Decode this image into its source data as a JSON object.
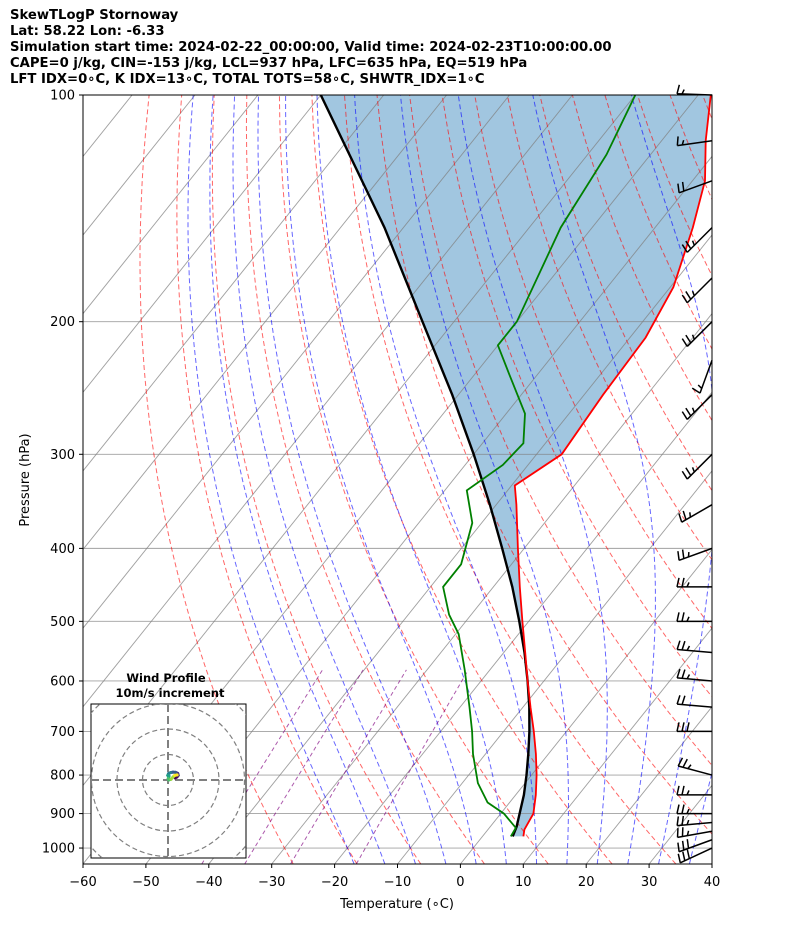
{
  "header": {
    "line1": "SkewTLogP Stornoway",
    "line2": "Lat: 58.22   Lon: -6.33",
    "line3": "Simulation start time: 2024-02-22_00:00:00, Valid time: 2024-02-23T10:00:00.00",
    "line4": "CAPE=0 j/kg, CIN=-153 j/kg, LCL=937 hPa, LFC=635 hPa, EQ=519 hPa",
    "line5": "LFT IDX=0∘C, K IDX=13∘C, TOTAL TOTS=58∘C, SHWTR_IDX=1∘C"
  },
  "chart_data": {
    "type": "skewt",
    "xlabel": "Temperature (∘C)",
    "ylabel": "Pressure (hPa)",
    "xlim": [
      -60,
      40
    ],
    "ylim": [
      1050,
      100
    ],
    "y_scale": "log",
    "grid": true,
    "x_ticks": [
      -60,
      -50,
      -40,
      -30,
      -20,
      -10,
      0,
      10,
      20,
      30,
      40
    ],
    "y_ticks": [
      1000,
      900,
      800,
      700,
      600,
      500,
      400,
      300,
      200,
      100
    ],
    "temperature": [
      {
        "p": 965,
        "t": 6.5
      },
      {
        "p": 945,
        "t": 5.8
      },
      {
        "p": 900,
        "t": 5.2
      },
      {
        "p": 850,
        "t": 3.2
      },
      {
        "p": 800,
        "t": 0.8
      },
      {
        "p": 750,
        "t": -2.0
      },
      {
        "p": 700,
        "t": -5.2
      },
      {
        "p": 650,
        "t": -8.8
      },
      {
        "p": 600,
        "t": -12.6
      },
      {
        "p": 550,
        "t": -16.6
      },
      {
        "p": 500,
        "t": -21.0
      },
      {
        "p": 450,
        "t": -25.8
      },
      {
        "p": 400,
        "t": -31.0
      },
      {
        "p": 350,
        "t": -36.8
      },
      {
        "p": 330,
        "t": -39.5
      },
      {
        "p": 300,
        "t": -36.0
      },
      {
        "p": 250,
        "t": -37.0
      },
      {
        "p": 210,
        "t": -37.5
      },
      {
        "p": 180,
        "t": -39.5
      },
      {
        "p": 150,
        "t": -44.0
      },
      {
        "p": 130,
        "t": -48.0
      },
      {
        "p": 115,
        "t": -53.0
      },
      {
        "p": 100,
        "t": -58.0
      }
    ],
    "dewpoint": [
      {
        "p": 965,
        "t": 4.5
      },
      {
        "p": 940,
        "t": 4.2
      },
      {
        "p": 900,
        "t": 0.5
      },
      {
        "p": 870,
        "t": -3.5
      },
      {
        "p": 820,
        "t": -7.5
      },
      {
        "p": 750,
        "t": -12.0
      },
      {
        "p": 700,
        "t": -15.0
      },
      {
        "p": 650,
        "t": -18.5
      },
      {
        "p": 580,
        "t": -24.0
      },
      {
        "p": 520,
        "t": -29.5
      },
      {
        "p": 490,
        "t": -33.5
      },
      {
        "p": 450,
        "t": -38.0
      },
      {
        "p": 420,
        "t": -38.0
      },
      {
        "p": 370,
        "t": -41.5
      },
      {
        "p": 335,
        "t": -46.5
      },
      {
        "p": 310,
        "t": -44.0
      },
      {
        "p": 290,
        "t": -43.5
      },
      {
        "p": 265,
        "t": -47.0
      },
      {
        "p": 235,
        "t": -54.5
      },
      {
        "p": 215,
        "t": -60.0
      },
      {
        "p": 200,
        "t": -60.0
      },
      {
        "p": 150,
        "t": -65.0
      },
      {
        "p": 120,
        "t": -67.0
      },
      {
        "p": 100,
        "t": -70.0
      }
    ],
    "parcel_profile": [
      {
        "p": 965,
        "t": 4.8
      },
      {
        "p": 937,
        "t": 4.2
      },
      {
        "p": 900,
        "t": 3.0
      },
      {
        "p": 850,
        "t": 1.3
      },
      {
        "p": 800,
        "t": -0.8
      },
      {
        "p": 750,
        "t": -3.2
      },
      {
        "p": 700,
        "t": -5.9
      },
      {
        "p": 650,
        "t": -9.0
      },
      {
        "p": 600,
        "t": -12.6
      },
      {
        "p": 550,
        "t": -16.7
      },
      {
        "p": 500,
        "t": -21.5
      },
      {
        "p": 450,
        "t": -27.0
      },
      {
        "p": 400,
        "t": -33.5
      },
      {
        "p": 350,
        "t": -41.0
      },
      {
        "p": 300,
        "t": -50.0
      },
      {
        "p": 250,
        "t": -61.0
      },
      {
        "p": 200,
        "t": -75.0
      },
      {
        "p": 150,
        "t": -93.0
      },
      {
        "p": 100,
        "t": -120.0
      }
    ],
    "wind_barbs": [
      {
        "p": 1000,
        "speed_kt": 30,
        "dir_deg": 245
      },
      {
        "p": 975,
        "speed_kt": 30,
        "dir_deg": 250
      },
      {
        "p": 950,
        "speed_kt": 25,
        "dir_deg": 260
      },
      {
        "p": 925,
        "speed_kt": 25,
        "dir_deg": 265
      },
      {
        "p": 900,
        "speed_kt": 25,
        "dir_deg": 270
      },
      {
        "p": 850,
        "speed_kt": 25,
        "dir_deg": 270
      },
      {
        "p": 800,
        "speed_kt": 25,
        "dir_deg": 285
      },
      {
        "p": 700,
        "speed_kt": 30,
        "dir_deg": 270
      },
      {
        "p": 650,
        "speed_kt": 20,
        "dir_deg": 275
      },
      {
        "p": 600,
        "speed_kt": 25,
        "dir_deg": 275
      },
      {
        "p": 550,
        "speed_kt": 25,
        "dir_deg": 275
      },
      {
        "p": 500,
        "speed_kt": 25,
        "dir_deg": 270
      },
      {
        "p": 450,
        "speed_kt": 25,
        "dir_deg": 270
      },
      {
        "p": 400,
        "speed_kt": 25,
        "dir_deg": 250
      },
      {
        "p": 350,
        "speed_kt": 25,
        "dir_deg": 240
      },
      {
        "p": 300,
        "speed_kt": 25,
        "dir_deg": 225
      },
      {
        "p": 250,
        "speed_kt": 25,
        "dir_deg": 225
      },
      {
        "p": 225,
        "speed_kt": 15,
        "dir_deg": 200
      },
      {
        "p": 200,
        "speed_kt": 25,
        "dir_deg": 225
      },
      {
        "p": 175,
        "speed_kt": 25,
        "dir_deg": 225
      },
      {
        "p": 150,
        "speed_kt": 25,
        "dir_deg": 225
      },
      {
        "p": 130,
        "speed_kt": 20,
        "dir_deg": 250
      },
      {
        "p": 115,
        "speed_kt": 15,
        "dir_deg": 262
      },
      {
        "p": 100,
        "speed_kt": 15,
        "dir_deg": 272
      }
    ],
    "colors": {
      "temperature": "#ff0000",
      "dewpoint": "#008000",
      "parcel": "#000000",
      "cape_cin_fill": "#1f77b4",
      "dry_adiabats": "#ff0000",
      "moist_adiabats": "#0000ff",
      "mixing_ratio": "#800080",
      "isotherms": "#808080"
    },
    "inset": {
      "title": "Wind Profile",
      "subtitle": "10m/s increment",
      "ring_increment_ms": 10,
      "hodograph_colormap": "viridis",
      "hodograph": [
        {
          "u": 2.8,
          "v": 0.8
        },
        {
          "u": 3.5,
          "v": 1.2
        },
        {
          "u": 4.0,
          "v": 1.8
        },
        {
          "u": 3.8,
          "v": 2.6
        },
        {
          "u": 3.0,
          "v": 3.0
        },
        {
          "u": 2.0,
          "v": 3.1
        },
        {
          "u": 1.0,
          "v": 2.9
        },
        {
          "u": 0.2,
          "v": 2.5
        },
        {
          "u": -0.1,
          "v": 1.8
        },
        {
          "u": 0.4,
          "v": 1.5
        },
        {
          "u": 0.1,
          "v": 0.6
        },
        {
          "u": 0.3,
          "v": 0.0
        },
        {
          "u": 1.2,
          "v": 0.3
        },
        {
          "u": 2.0,
          "v": 1.2
        },
        {
          "u": 2.6,
          "v": 1.8
        },
        {
          "u": 3.6,
          "v": 2.0
        }
      ]
    }
  }
}
